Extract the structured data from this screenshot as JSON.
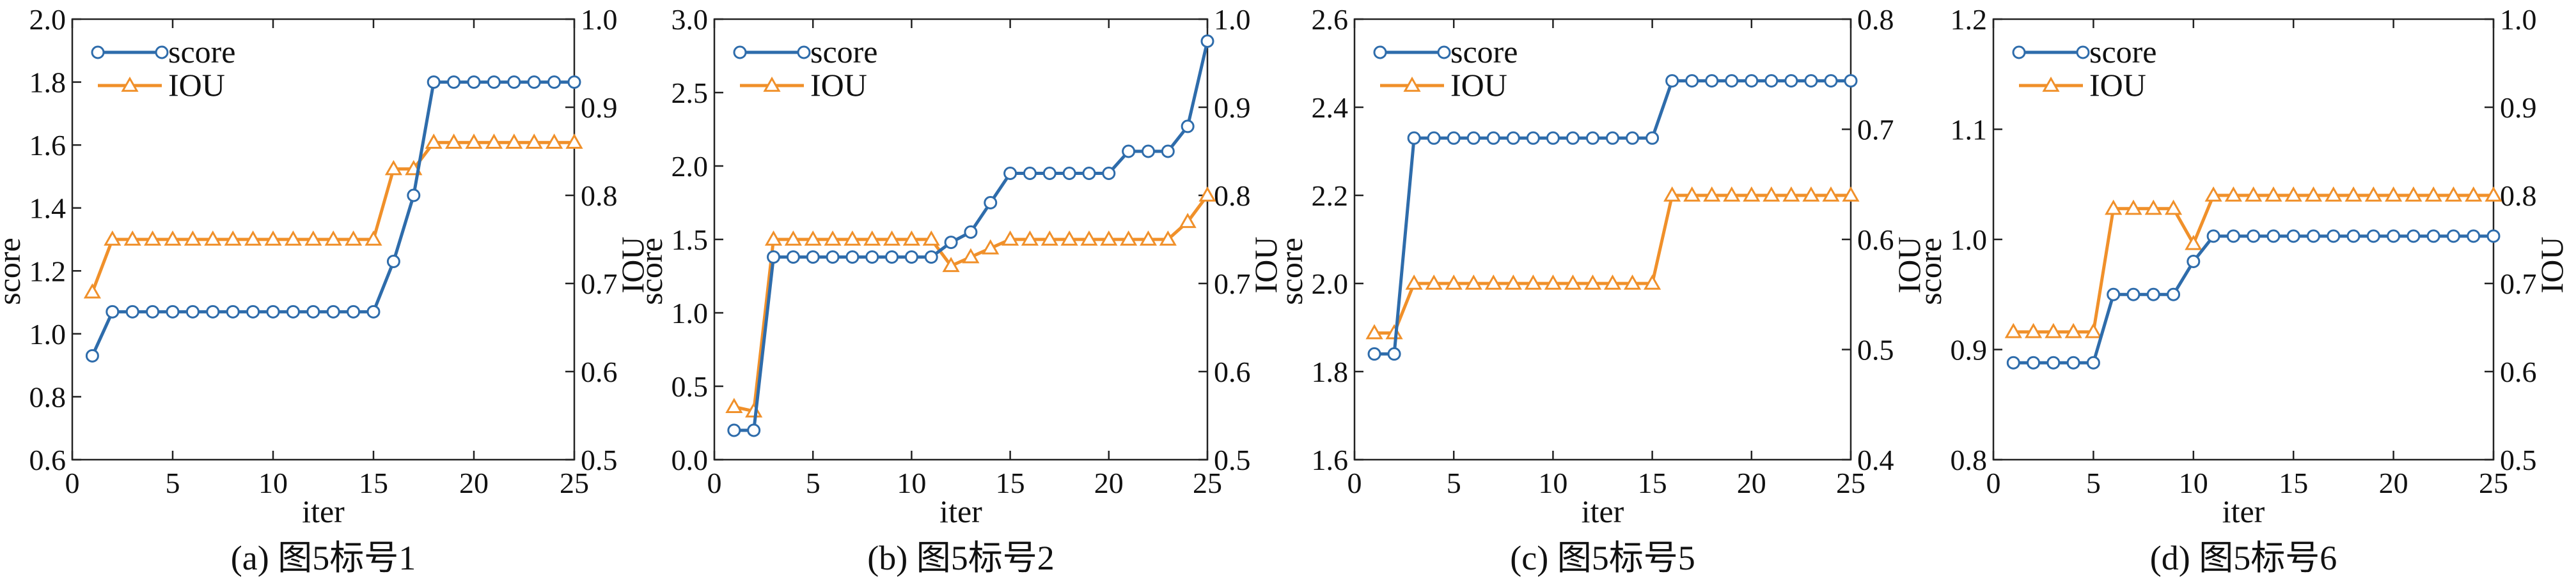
{
  "colors": {
    "score": "#2e6cab",
    "iou": "#f0902a",
    "marker_fill": "#ffffff"
  },
  "chart_data": [
    {
      "type": "line",
      "caption": "(a) 图5标号1",
      "xlabel": "iter",
      "ylabel": "score",
      "y2label": "IOU",
      "xlim": [
        0,
        25
      ],
      "xticks": [
        "0",
        "5",
        "10",
        "15",
        "20",
        "25"
      ],
      "ylim": [
        0.6,
        2.0
      ],
      "yticks": [
        "0.6",
        "0.8",
        "1.0",
        "1.2",
        "1.4",
        "1.6",
        "1.8",
        "2.0"
      ],
      "y2lim": [
        0.5,
        1.0
      ],
      "y2ticks": [
        "0.5",
        "0.6",
        "0.7",
        "0.8",
        "0.9",
        "1.0"
      ],
      "legend": "top-left",
      "x": [
        1,
        2,
        3,
        4,
        5,
        6,
        7,
        8,
        9,
        10,
        11,
        12,
        13,
        14,
        15,
        16,
        17,
        18,
        19,
        20,
        21,
        22,
        23,
        24,
        25
      ],
      "series": [
        {
          "name": "score",
          "axis": "left",
          "marker": "circle",
          "values": [
            0.93,
            1.07,
            1.07,
            1.07,
            1.07,
            1.07,
            1.07,
            1.07,
            1.07,
            1.07,
            1.07,
            1.07,
            1.07,
            1.07,
            1.07,
            1.23,
            1.44,
            1.8,
            1.8,
            1.8,
            1.8,
            1.8,
            1.8,
            1.8,
            1.8
          ]
        },
        {
          "name": "IOU",
          "axis": "right",
          "marker": "triangle",
          "values": [
            0.69,
            0.75,
            0.75,
            0.75,
            0.75,
            0.75,
            0.75,
            0.75,
            0.75,
            0.75,
            0.75,
            0.75,
            0.75,
            0.75,
            0.75,
            0.83,
            0.83,
            0.86,
            0.86,
            0.86,
            0.86,
            0.86,
            0.86,
            0.86,
            0.86
          ]
        }
      ]
    },
    {
      "type": "line",
      "caption": "(b) 图5标号2",
      "xlabel": "iter",
      "ylabel": "score",
      "y2label": "IOU",
      "xlim": [
        0,
        25
      ],
      "xticks": [
        "0",
        "5",
        "10",
        "15",
        "20",
        "25"
      ],
      "ylim": [
        0.0,
        3.0
      ],
      "yticks": [
        "0.0",
        "0.5",
        "1.0",
        "1.5",
        "2.0",
        "2.5",
        "3.0"
      ],
      "y2lim": [
        0.5,
        1.0
      ],
      "y2ticks": [
        "0.5",
        "0.6",
        "0.7",
        "0.8",
        "0.9",
        "1.0"
      ],
      "legend": "top-left",
      "x": [
        1,
        2,
        3,
        4,
        5,
        6,
        7,
        8,
        9,
        10,
        11,
        12,
        13,
        14,
        15,
        16,
        17,
        18,
        19,
        20,
        21,
        22,
        23,
        24,
        25
      ],
      "series": [
        {
          "name": "score",
          "axis": "left",
          "marker": "circle",
          "values": [
            0.2,
            0.2,
            1.38,
            1.38,
            1.38,
            1.38,
            1.38,
            1.38,
            1.38,
            1.38,
            1.38,
            1.48,
            1.55,
            1.75,
            1.95,
            1.95,
            1.95,
            1.95,
            1.95,
            1.95,
            2.1,
            2.1,
            2.1,
            2.27,
            2.85
          ]
        },
        {
          "name": "IOU",
          "axis": "right",
          "marker": "triangle",
          "values": [
            0.56,
            0.555,
            0.75,
            0.75,
            0.75,
            0.75,
            0.75,
            0.75,
            0.75,
            0.75,
            0.75,
            0.72,
            0.73,
            0.74,
            0.75,
            0.75,
            0.75,
            0.75,
            0.75,
            0.75,
            0.75,
            0.75,
            0.75,
            0.77,
            0.8
          ]
        }
      ]
    },
    {
      "type": "line",
      "caption": "(c) 图5标号5",
      "xlabel": "iter",
      "ylabel": "score",
      "y2label": "IOU",
      "xlim": [
        0,
        25
      ],
      "xticks": [
        "0",
        "5",
        "10",
        "15",
        "20",
        "25"
      ],
      "ylim": [
        1.6,
        2.6
      ],
      "yticks": [
        "1.6",
        "1.8",
        "2.0",
        "2.2",
        "2.4",
        "2.6"
      ],
      "y2lim": [
        0.4,
        0.8
      ],
      "y2ticks": [
        "0.4",
        "0.5",
        "0.6",
        "0.7",
        "0.8"
      ],
      "legend": "top-left",
      "x": [
        1,
        2,
        3,
        4,
        5,
        6,
        7,
        8,
        9,
        10,
        11,
        12,
        13,
        14,
        15,
        16,
        17,
        18,
        19,
        20,
        21,
        22,
        23,
        24,
        25
      ],
      "series": [
        {
          "name": "score",
          "axis": "left",
          "marker": "circle",
          "values": [
            1.84,
            1.84,
            2.33,
            2.33,
            2.33,
            2.33,
            2.33,
            2.33,
            2.33,
            2.33,
            2.33,
            2.33,
            2.33,
            2.33,
            2.33,
            2.46,
            2.46,
            2.46,
            2.46,
            2.46,
            2.46,
            2.46,
            2.46,
            2.46,
            2.46
          ]
        },
        {
          "name": "IOU",
          "axis": "right",
          "marker": "triangle",
          "values": [
            0.515,
            0.515,
            0.56,
            0.56,
            0.56,
            0.56,
            0.56,
            0.56,
            0.56,
            0.56,
            0.56,
            0.56,
            0.56,
            0.56,
            0.56,
            0.64,
            0.64,
            0.64,
            0.64,
            0.64,
            0.64,
            0.64,
            0.64,
            0.64,
            0.64
          ]
        }
      ]
    },
    {
      "type": "line",
      "caption": "(d) 图5标号6",
      "xlabel": "iter",
      "ylabel": "score",
      "y2label": "IOU",
      "xlim": [
        0,
        25
      ],
      "xticks": [
        "0",
        "5",
        "10",
        "15",
        "20",
        "25"
      ],
      "ylim": [
        0.8,
        1.2
      ],
      "yticks": [
        "0.8",
        "0.9",
        "1.0",
        "1.1",
        "1.2"
      ],
      "y2lim": [
        0.5,
        1.0
      ],
      "y2ticks": [
        "0.5",
        "0.6",
        "0.7",
        "0.8",
        "0.9",
        "1.0"
      ],
      "legend": "top-left",
      "x": [
        1,
        2,
        3,
        4,
        5,
        6,
        7,
        8,
        9,
        10,
        11,
        12,
        13,
        14,
        15,
        16,
        17,
        18,
        19,
        20,
        21,
        22,
        23,
        24,
        25
      ],
      "series": [
        {
          "name": "score",
          "axis": "left",
          "marker": "circle",
          "values": [
            0.888,
            0.888,
            0.888,
            0.888,
            0.888,
            0.95,
            0.95,
            0.95,
            0.95,
            0.98,
            1.003,
            1.003,
            1.003,
            1.003,
            1.003,
            1.003,
            1.003,
            1.003,
            1.003,
            1.003,
            1.003,
            1.003,
            1.003,
            1.003,
            1.003
          ]
        },
        {
          "name": "IOU",
          "axis": "right",
          "marker": "triangle",
          "values": [
            0.645,
            0.645,
            0.645,
            0.645,
            0.645,
            0.785,
            0.785,
            0.785,
            0.785,
            0.745,
            0.8,
            0.8,
            0.8,
            0.8,
            0.8,
            0.8,
            0.8,
            0.8,
            0.8,
            0.8,
            0.8,
            0.8,
            0.8,
            0.8,
            0.8
          ]
        }
      ]
    }
  ]
}
